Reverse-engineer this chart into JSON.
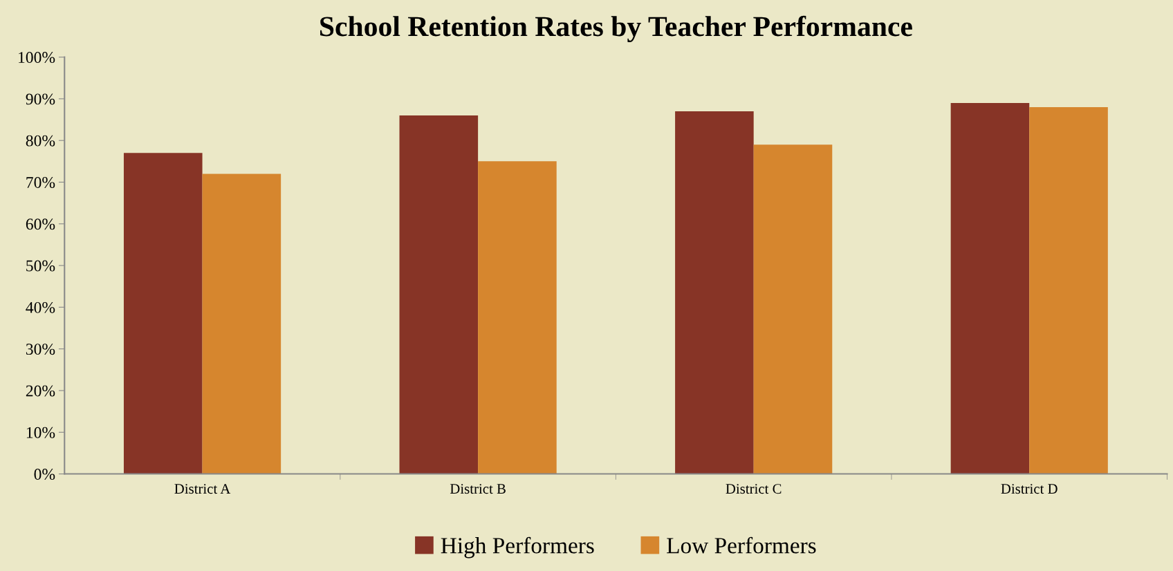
{
  "chart_data": {
    "type": "bar",
    "title": "School Retention Rates by Teacher Performance",
    "categories": [
      "District A",
      "District B",
      "District C",
      "District D"
    ],
    "series": [
      {
        "name": "High Performers",
        "color": "#873426",
        "values": [
          77,
          86,
          87,
          89
        ]
      },
      {
        "name": "Low Performers",
        "color": "#d6862e",
        "values": [
          72,
          75,
          79,
          88
        ]
      }
    ],
    "ylim": [
      0,
      100
    ],
    "yticks": [
      {
        "value": 0,
        "label": "0%"
      },
      {
        "value": 10,
        "label": "10%"
      },
      {
        "value": 20,
        "label": "20%"
      },
      {
        "value": 30,
        "label": "30%"
      },
      {
        "value": 40,
        "label": "40%"
      },
      {
        "value": 50,
        "label": "50%"
      },
      {
        "value": 60,
        "label": "60%"
      },
      {
        "value": 70,
        "label": "70%"
      },
      {
        "value": 80,
        "label": "80%"
      },
      {
        "value": 90,
        "label": "90%"
      },
      {
        "value": 100,
        "label": "100%"
      }
    ],
    "grid": false,
    "legend": "bottom"
  }
}
